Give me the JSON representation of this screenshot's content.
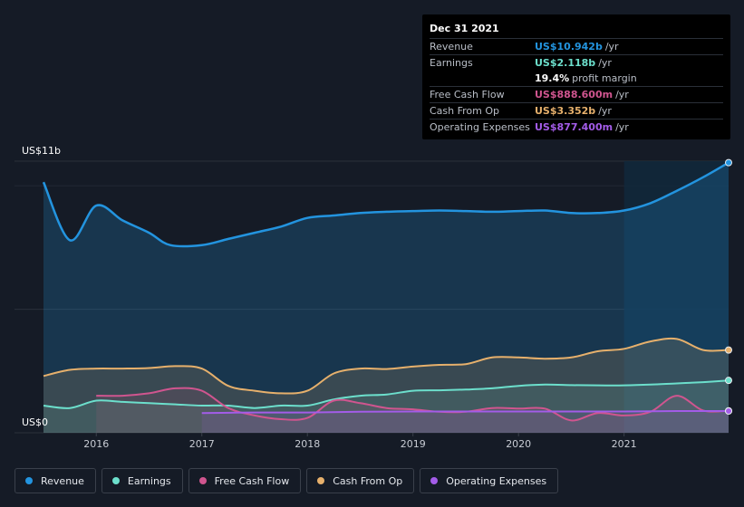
{
  "tooltip": {
    "date": "Dec 31 2021",
    "rows": [
      {
        "label": "Revenue",
        "value": "US$10.942b",
        "unit": "/yr",
        "color": "#2394df"
      },
      {
        "label": "Earnings",
        "value": "US$2.118b",
        "unit": "/yr",
        "color": "#6cdfcc"
      },
      {
        "label": "",
        "value": "19.4%",
        "unit": "profit margin",
        "color": "#ffffff"
      },
      {
        "label": "Free Cash Flow",
        "value": "US$888.600m",
        "unit": "/yr",
        "color": "#d0558f"
      },
      {
        "label": "Cash From Op",
        "value": "US$3.352b",
        "unit": "/yr",
        "color": "#e6b06c"
      },
      {
        "label": "Operating Expenses",
        "value": "US$877.400m",
        "unit": "/yr",
        "color": "#a35ce8"
      }
    ]
  },
  "y_top_label": "US$11b",
  "y_bottom_label": "US$0",
  "legend": [
    {
      "label": "Revenue",
      "color": "#2394df"
    },
    {
      "label": "Earnings",
      "color": "#6cdfcc"
    },
    {
      "label": "Free Cash Flow",
      "color": "#d0558f"
    },
    {
      "label": "Cash From Op",
      "color": "#e6b06c"
    },
    {
      "label": "Operating Expenses",
      "color": "#a35ce8"
    }
  ],
  "chart_data": {
    "type": "area",
    "x_ticks": [
      "2016",
      "2017",
      "2018",
      "2019",
      "2020",
      "2021"
    ],
    "ylim": [
      0,
      11
    ],
    "y_unit": "US$b",
    "series": [
      {
        "name": "Revenue",
        "color": "#2394df",
        "points": [
          [
            2015.5,
            10.15
          ],
          [
            2015.75,
            7.8
          ],
          [
            2016.0,
            9.2
          ],
          [
            2016.25,
            8.6
          ],
          [
            2016.5,
            8.1
          ],
          [
            2016.7,
            7.6
          ],
          [
            2017.0,
            7.6
          ],
          [
            2017.25,
            7.85
          ],
          [
            2017.5,
            8.1
          ],
          [
            2017.75,
            8.35
          ],
          [
            2018.0,
            8.7
          ],
          [
            2018.25,
            8.8
          ],
          [
            2018.5,
            8.9
          ],
          [
            2018.75,
            8.95
          ],
          [
            2019.0,
            8.98
          ],
          [
            2019.25,
            9.0
          ],
          [
            2019.5,
            8.98
          ],
          [
            2019.75,
            8.95
          ],
          [
            2020.0,
            8.98
          ],
          [
            2020.25,
            9.0
          ],
          [
            2020.5,
            8.9
          ],
          [
            2020.75,
            8.9
          ],
          [
            2021.0,
            9.0
          ],
          [
            2021.25,
            9.3
          ],
          [
            2021.5,
            9.8
          ],
          [
            2021.75,
            10.35
          ],
          [
            2021.99,
            10.94
          ]
        ]
      },
      {
        "name": "Earnings",
        "color": "#6cdfcc",
        "points": [
          [
            2015.5,
            1.1
          ],
          [
            2015.75,
            1.0
          ],
          [
            2016.0,
            1.3
          ],
          [
            2016.25,
            1.25
          ],
          [
            2016.5,
            1.2
          ],
          [
            2016.75,
            1.15
          ],
          [
            2017.0,
            1.1
          ],
          [
            2017.25,
            1.1
          ],
          [
            2017.5,
            1.0
          ],
          [
            2017.75,
            1.1
          ],
          [
            2018.0,
            1.1
          ],
          [
            2018.25,
            1.35
          ],
          [
            2018.5,
            1.5
          ],
          [
            2018.75,
            1.55
          ],
          [
            2019.0,
            1.7
          ],
          [
            2019.25,
            1.72
          ],
          [
            2019.5,
            1.75
          ],
          [
            2019.75,
            1.8
          ],
          [
            2020.0,
            1.9
          ],
          [
            2020.25,
            1.95
          ],
          [
            2020.5,
            1.93
          ],
          [
            2020.75,
            1.92
          ],
          [
            2021.0,
            1.92
          ],
          [
            2021.25,
            1.95
          ],
          [
            2021.5,
            2.0
          ],
          [
            2021.75,
            2.05
          ],
          [
            2021.99,
            2.12
          ]
        ]
      },
      {
        "name": "Free Cash Flow",
        "color": "#d0558f",
        "points": [
          [
            2016.0,
            1.5
          ],
          [
            2016.25,
            1.5
          ],
          [
            2016.5,
            1.6
          ],
          [
            2016.75,
            1.8
          ],
          [
            2017.0,
            1.7
          ],
          [
            2017.25,
            1.0
          ],
          [
            2017.5,
            0.7
          ],
          [
            2017.75,
            0.55
          ],
          [
            2018.0,
            0.6
          ],
          [
            2018.25,
            1.3
          ],
          [
            2018.5,
            1.2
          ],
          [
            2018.75,
            1.0
          ],
          [
            2019.0,
            0.95
          ],
          [
            2019.25,
            0.85
          ],
          [
            2019.5,
            0.85
          ],
          [
            2019.75,
            1.0
          ],
          [
            2020.0,
            0.98
          ],
          [
            2020.25,
            0.98
          ],
          [
            2020.5,
            0.5
          ],
          [
            2020.75,
            0.8
          ],
          [
            2021.0,
            0.7
          ],
          [
            2021.25,
            0.85
          ],
          [
            2021.5,
            1.5
          ],
          [
            2021.75,
            0.9
          ],
          [
            2021.99,
            0.89
          ]
        ]
      },
      {
        "name": "Cash From Op",
        "color": "#e6b06c",
        "points": [
          [
            2015.5,
            2.3
          ],
          [
            2015.75,
            2.55
          ],
          [
            2016.0,
            2.6
          ],
          [
            2016.25,
            2.6
          ],
          [
            2016.5,
            2.62
          ],
          [
            2016.75,
            2.7
          ],
          [
            2017.0,
            2.6
          ],
          [
            2017.25,
            1.9
          ],
          [
            2017.5,
            1.7
          ],
          [
            2017.75,
            1.6
          ],
          [
            2018.0,
            1.7
          ],
          [
            2018.25,
            2.4
          ],
          [
            2018.5,
            2.6
          ],
          [
            2018.75,
            2.58
          ],
          [
            2019.0,
            2.68
          ],
          [
            2019.25,
            2.75
          ],
          [
            2019.5,
            2.78
          ],
          [
            2019.75,
            3.05
          ],
          [
            2020.0,
            3.05
          ],
          [
            2020.25,
            3.0
          ],
          [
            2020.5,
            3.05
          ],
          [
            2020.75,
            3.3
          ],
          [
            2021.0,
            3.4
          ],
          [
            2021.25,
            3.7
          ],
          [
            2021.5,
            3.8
          ],
          [
            2021.75,
            3.35
          ],
          [
            2021.99,
            3.35
          ]
        ]
      },
      {
        "name": "Operating Expenses",
        "color": "#a35ce8",
        "points": [
          [
            2017.0,
            0.8
          ],
          [
            2017.5,
            0.82
          ],
          [
            2018.0,
            0.82
          ],
          [
            2018.5,
            0.85
          ],
          [
            2019.0,
            0.86
          ],
          [
            2019.5,
            0.86
          ],
          [
            2020.0,
            0.86
          ],
          [
            2020.5,
            0.86
          ],
          [
            2021.0,
            0.86
          ],
          [
            2021.5,
            0.88
          ],
          [
            2021.99,
            0.88
          ]
        ]
      }
    ]
  }
}
